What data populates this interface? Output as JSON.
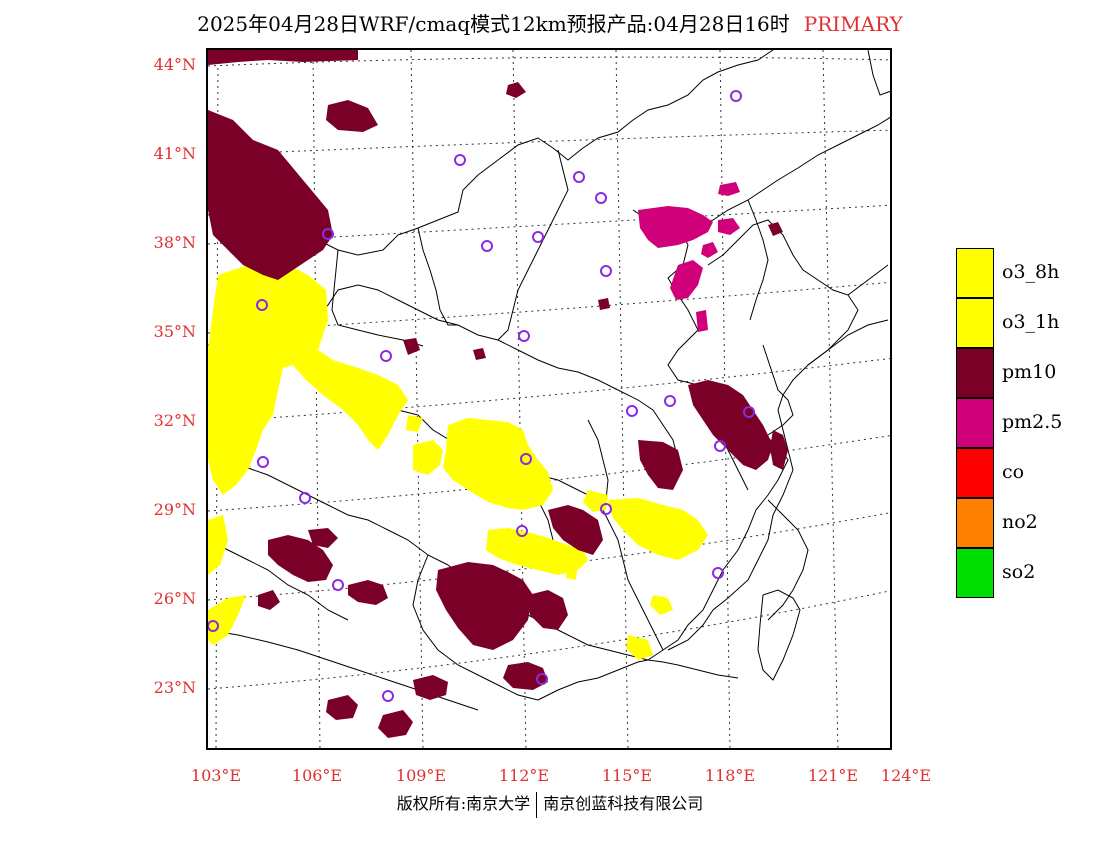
{
  "title": {
    "main": "2025年04月28日WRF/cmaq模式12km预报产品:04月28日16时",
    "tag": "PRIMARY"
  },
  "colors": {
    "label": "#e03030",
    "o3": "#ffff00",
    "pm10": "#7b0028",
    "pm25": "#d0007a",
    "co": "#ff0000",
    "no2": "#ff7f00",
    "so2": "#00dd00",
    "station": "#8a2be2"
  },
  "axes": {
    "lat_labels": [
      "44°N",
      "41°N",
      "38°N",
      "35°N",
      "32°N",
      "29°N",
      "26°N",
      "23°N"
    ],
    "lon_labels": [
      "103°E",
      "106°E",
      "109°E",
      "112°E",
      "115°E",
      "118°E",
      "121°E",
      "124°E"
    ]
  },
  "legend": {
    "items": [
      {
        "label": "o3_8h",
        "color": "#ffff00"
      },
      {
        "label": "o3_1h",
        "color": "#ffff00"
      },
      {
        "label": "pm10",
        "color": "#7b0028"
      },
      {
        "label": "pm2.5",
        "color": "#d0007a"
      },
      {
        "label": "co",
        "color": "#ff0000"
      },
      {
        "label": "no2",
        "color": "#ff7f00"
      },
      {
        "label": "so2",
        "color": "#00dd00"
      }
    ]
  },
  "footer": {
    "left": "版权所有:南京大学",
    "right": "南京创蓝科技有限公司"
  }
}
